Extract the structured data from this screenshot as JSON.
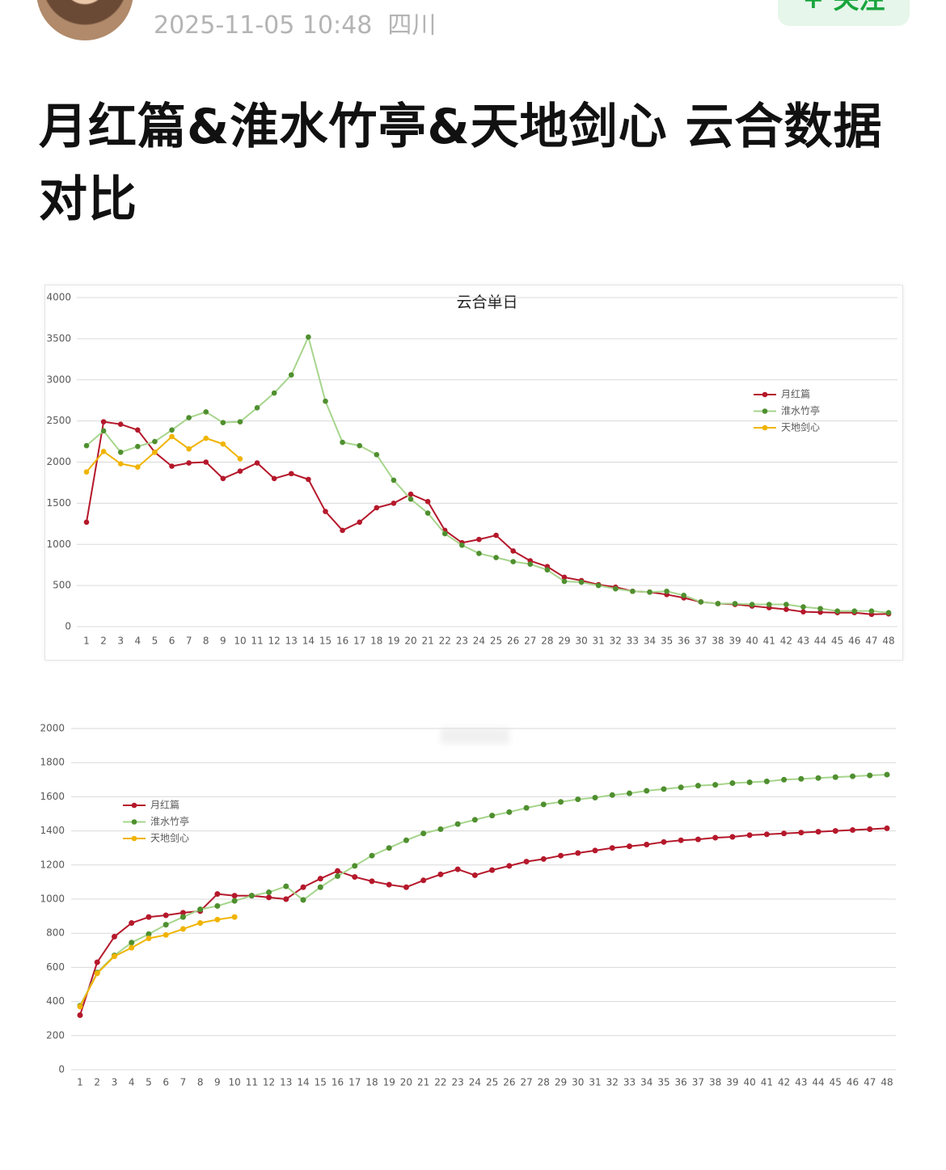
{
  "header": {
    "time": "2025-11-05 10:48",
    "location": "四川",
    "follow": "+ 关注"
  },
  "title": "月红篇&淮水竹亭&天地剑心 云合数据对比",
  "chart_data": [
    {
      "type": "line",
      "title": "云合单日",
      "categories": [
        "1",
        "2",
        "3",
        "4",
        "5",
        "6",
        "7",
        "8",
        "9",
        "10",
        "11",
        "12",
        "13",
        "14",
        "15",
        "16",
        "17",
        "18",
        "19",
        "20",
        "21",
        "22",
        "23",
        "24",
        "25",
        "26",
        "27",
        "28",
        "29",
        "30",
        "31",
        "32",
        "33",
        "34",
        "35",
        "36",
        "37",
        "38",
        "39",
        "40",
        "41",
        "42",
        "43",
        "44",
        "45",
        "46",
        "47",
        "48"
      ],
      "ylim": [
        0,
        4000
      ],
      "yticks": [
        0,
        500,
        1000,
        1500,
        2000,
        2500,
        3000,
        3500,
        4000
      ],
      "grid": true,
      "legend": "right",
      "series": [
        {
          "name": "月红篇",
          "color": "#b5182b",
          "marker_color": "#b5182b",
          "values": [
            1270,
            2490,
            2460,
            2390,
            2120,
            1950,
            1990,
            2000,
            1800,
            1890,
            1990,
            1800,
            1860,
            1790,
            1400,
            1170,
            1270,
            1445,
            1500,
            1610,
            1520,
            1170,
            1020,
            1060,
            1110,
            920,
            800,
            730,
            600,
            560,
            510,
            480,
            430,
            420,
            390,
            350,
            300,
            280,
            270,
            250,
            230,
            210,
            180,
            175,
            170,
            170,
            150,
            155
          ]
        },
        {
          "name": "淮水竹亭",
          "color": "#a6d58c",
          "marker_color": "#4f8f2f",
          "values": [
            2200,
            2380,
            2120,
            2190,
            2250,
            2390,
            2540,
            2610,
            2480,
            2490,
            2660,
            2840,
            3060,
            3520,
            2740,
            2240,
            2200,
            2090,
            1780,
            1550,
            1380,
            1130,
            990,
            890,
            840,
            790,
            760,
            690,
            550,
            540,
            500,
            460,
            430,
            420,
            430,
            380,
            300,
            280,
            280,
            270,
            270,
            270,
            240,
            220,
            190,
            190,
            190,
            170
          ]
        },
        {
          "name": "天地剑心",
          "color": "#f0b400",
          "marker_color": "#f0b400",
          "values": [
            1880,
            2130,
            1980,
            1940,
            2120,
            2310,
            2160,
            2290,
            2220,
            2040,
            null,
            null,
            null,
            null,
            null,
            null,
            null,
            null,
            null,
            null,
            null,
            null,
            null,
            null,
            null,
            null,
            null,
            null,
            null,
            null,
            null,
            null,
            null,
            null,
            null,
            null,
            null,
            null,
            null,
            null,
            null,
            null,
            null,
            null,
            null,
            null,
            null,
            null
          ]
        }
      ]
    },
    {
      "type": "line",
      "categories": [
        "1",
        "2",
        "3",
        "4",
        "5",
        "6",
        "7",
        "8",
        "9",
        "10",
        "11",
        "12",
        "13",
        "14",
        "15",
        "16",
        "17",
        "18",
        "19",
        "20",
        "21",
        "22",
        "23",
        "24",
        "25",
        "26",
        "27",
        "28",
        "29",
        "30",
        "31",
        "32",
        "33",
        "34",
        "35",
        "36",
        "37",
        "38",
        "39",
        "40",
        "41",
        "42",
        "43",
        "44",
        "45",
        "46",
        "47",
        "48"
      ],
      "ylim": [
        0,
        2000
      ],
      "yticks": [
        0,
        200,
        400,
        600,
        800,
        1000,
        1200,
        1400,
        1600,
        1800,
        2000
      ],
      "grid": true,
      "legend": "upper left",
      "series": [
        {
          "name": "月红篇",
          "color": "#b5182b",
          "marker_color": "#b5182b",
          "values": [
            320,
            630,
            780,
            860,
            895,
            905,
            920,
            930,
            1030,
            1020,
            1020,
            1010,
            1000,
            1070,
            1120,
            1165,
            1130,
            1105,
            1085,
            1070,
            1110,
            1145,
            1175,
            1140,
            1170,
            1195,
            1220,
            1235,
            1255,
            1270,
            1285,
            1300,
            1310,
            1320,
            1335,
            1345,
            1350,
            1360,
            1365,
            1375,
            1380,
            1385,
            1390,
            1395,
            1400,
            1405,
            1410,
            1415
          ]
        },
        {
          "name": "淮水竹亭",
          "color": "#a6d58c",
          "marker_color": "#4f8f2f",
          "values": [
            375,
            570,
            670,
            745,
            795,
            850,
            895,
            940,
            960,
            990,
            1020,
            1040,
            1075,
            995,
            1070,
            1135,
            1195,
            1255,
            1300,
            1345,
            1385,
            1410,
            1440,
            1465,
            1490,
            1510,
            1535,
            1555,
            1570,
            1585,
            1595,
            1610,
            1620,
            1635,
            1645,
            1655,
            1665,
            1670,
            1680,
            1685,
            1690,
            1700,
            1705,
            1710,
            1715,
            1720,
            1725,
            1730
          ]
        },
        {
          "name": "天地剑心",
          "color": "#f0b400",
          "marker_color": "#f0b400",
          "values": [
            370,
            565,
            665,
            715,
            770,
            790,
            825,
            860,
            880,
            895,
            null,
            null,
            null,
            null,
            null,
            null,
            null,
            null,
            null,
            null,
            null,
            null,
            null,
            null,
            null,
            null,
            null,
            null,
            null,
            null,
            null,
            null,
            null,
            null,
            null,
            null,
            null,
            null,
            null,
            null,
            null,
            null,
            null,
            null,
            null,
            null,
            null,
            null
          ]
        }
      ]
    }
  ]
}
